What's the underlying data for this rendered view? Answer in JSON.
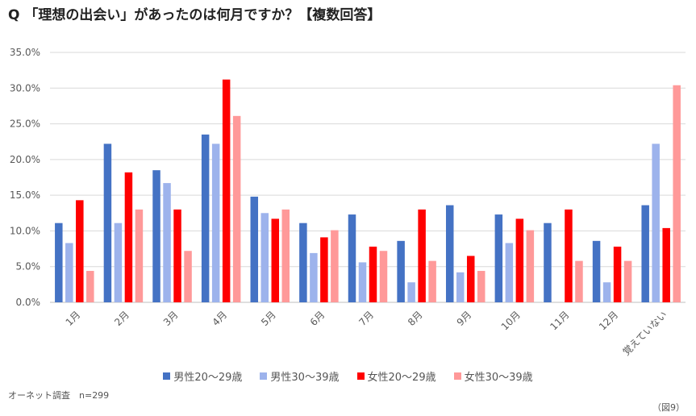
{
  "title": "Q 「理想の出会い」があったのは何月ですか？【複数回答】",
  "source": "オーネット調査　n=299",
  "figure_label": "（図9）",
  "chart_data": {
    "type": "bar",
    "title": "Q 「理想の出会い」があったのは何月ですか？【複数回答】",
    "categories": [
      "1月",
      "2月",
      "3月",
      "4月",
      "5月",
      "6月",
      "7月",
      "8月",
      "9月",
      "10月",
      "11月",
      "12月",
      "覚えていない"
    ],
    "yticks": [
      "0.0%",
      "5.0%",
      "10.0%",
      "15.0%",
      "20.0%",
      "25.0%",
      "30.0%",
      "35.0%"
    ],
    "ylim": [
      0,
      35
    ],
    "grid": true,
    "legend_position": "bottom",
    "series": [
      {
        "name": "男性20〜29歳",
        "color": "#4472C4",
        "values": [
          11.1,
          22.2,
          18.5,
          23.5,
          14.8,
          11.1,
          12.3,
          8.6,
          13.6,
          12.3,
          11.1,
          8.6,
          13.6
        ]
      },
      {
        "name": "男性30〜39歳",
        "color": "#9DB3EC",
        "values": [
          8.3,
          11.1,
          16.7,
          22.2,
          12.5,
          6.9,
          5.6,
          2.8,
          4.2,
          8.3,
          0.0,
          2.8,
          22.2
        ]
      },
      {
        "name": "女性20〜29歳",
        "color": "#FF0000",
        "values": [
          14.3,
          18.2,
          13.0,
          31.2,
          11.7,
          9.1,
          7.8,
          13.0,
          6.5,
          11.7,
          13.0,
          7.8,
          10.4
        ]
      },
      {
        "name": "女性30〜39歳",
        "color": "#FF9999",
        "values": [
          4.4,
          13.0,
          7.2,
          26.1,
          13.0,
          10.1,
          7.2,
          5.8,
          4.4,
          10.1,
          5.8,
          5.8,
          30.4
        ]
      }
    ]
  }
}
